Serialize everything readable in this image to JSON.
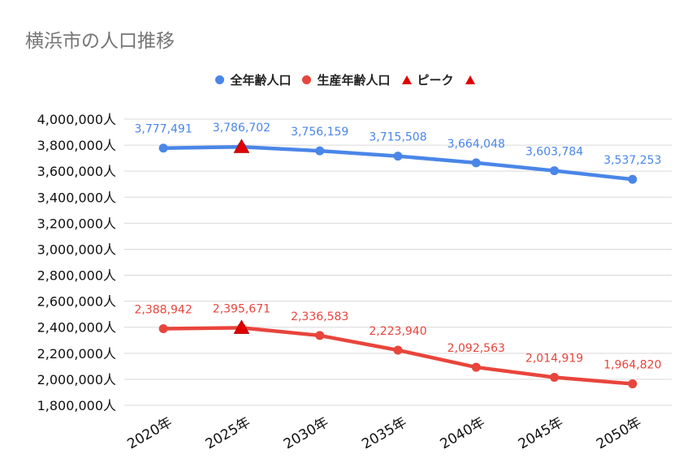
{
  "title": "横浜市の人口推移",
  "legend": [
    {
      "label": "全年齢人口",
      "color": "#4a86e8",
      "marker": "circle"
    },
    {
      "label": "生産年齢人口",
      "color": "#e8453c",
      "marker": "circle"
    },
    {
      "label": "ピーク",
      "color": "#e00000",
      "marker": "triangle"
    },
    {
      "label": "",
      "color": "#e00000",
      "marker": "triangle"
    }
  ],
  "chart_data": {
    "type": "line",
    "title": "横浜市の人口推移",
    "categories": [
      "2020年",
      "2025年",
      "2030年",
      "2035年",
      "2040年",
      "2045年",
      "2050年"
    ],
    "ylim": [
      1800000,
      4000000
    ],
    "yticks": [
      {
        "value": 4000000,
        "label": "4,000,000人"
      },
      {
        "value": 3800000,
        "label": "3,800,000人"
      },
      {
        "value": 3600000,
        "label": "3,600,000人"
      },
      {
        "value": 3400000,
        "label": "3,400,000人"
      },
      {
        "value": 3200000,
        "label": "3,200,000人"
      },
      {
        "value": 3000000,
        "label": "3,000,000人"
      },
      {
        "value": 2800000,
        "label": "2,800,000人"
      },
      {
        "value": 2600000,
        "label": "2,600,000人"
      },
      {
        "value": 2400000,
        "label": "2,400,000人"
      },
      {
        "value": 2200000,
        "label": "2,200,000人"
      },
      {
        "value": 2000000,
        "label": "2,000,000人"
      },
      {
        "value": 1800000,
        "label": "1,800,000人"
      }
    ],
    "grid": true,
    "legend_position": "top",
    "series": [
      {
        "name": "全年齢人口",
        "color": "#4a86e8",
        "values": [
          3777491,
          3786702,
          3756159,
          3715508,
          3664048,
          3603784,
          3537253
        ],
        "labels": [
          "3,777,491",
          "3,786,702",
          "3,756,159",
          "3,715,508",
          "3,664,048",
          "3,603,784",
          "3,537,253"
        ]
      },
      {
        "name": "生産年齢人口",
        "color": "#e8453c",
        "values": [
          2388942,
          2395671,
          2336583,
          2223940,
          2092563,
          2014919,
          1964820
        ],
        "labels": [
          "2,388,942",
          "2,395,671",
          "2,336,583",
          "2,223,940",
          "2,092,563",
          "2,014,919",
          "1,964,820"
        ]
      }
    ],
    "peaks": [
      {
        "name": "ピーク",
        "series": 0,
        "category": "2025年",
        "value": 3786702
      },
      {
        "name": "",
        "series": 1,
        "category": "2025年",
        "value": 2395671
      }
    ]
  }
}
